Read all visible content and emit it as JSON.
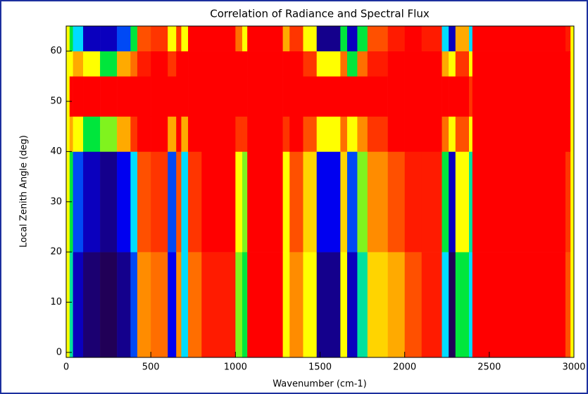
{
  "chart_data": {
    "type": "heatmap",
    "title": "Correlation of Radiance and Spectral Flux",
    "x_label": "Wavenumber (cm-1)",
    "y_label": "Local Zenith Angle (deg)",
    "xlim": [
      0,
      3000
    ],
    "ylim": [
      -1,
      65
    ],
    "xticks": [
      0,
      500,
      1000,
      1500,
      2000,
      2500,
      3000
    ],
    "yticks": [
      0,
      10,
      20,
      30,
      40,
      50,
      60
    ],
    "x_bins": [
      0,
      20,
      40,
      100,
      200,
      300,
      380,
      420,
      500,
      600,
      650,
      680,
      720,
      800,
      1000,
      1040,
      1070,
      1280,
      1320,
      1400,
      1480,
      1620,
      1660,
      1720,
      1780,
      1900,
      2000,
      2100,
      2220,
      2260,
      2300,
      2380,
      2400,
      2950,
      2980,
      3000
    ],
    "y_bins": [
      -1,
      20,
      40,
      47,
      55,
      60,
      65
    ],
    "values": [
      [
        0.6,
        0.6,
        0.6,
        0.6,
        0.6,
        0.6
      ],
      [
        0.45,
        0.5,
        0.7,
        1,
        0.6,
        0.5
      ],
      [
        0.2,
        0.3,
        0.6,
        1,
        0.7,
        0.4
      ],
      [
        0.1,
        0.2,
        0.5,
        1,
        0.6,
        0.2
      ],
      [
        0.05,
        0.15,
        0.55,
        1,
        0.5,
        0.2
      ],
      [
        0.15,
        0.25,
        0.7,
        1,
        0.7,
        0.3
      ],
      [
        0.3,
        0.4,
        0.9,
        1,
        0.8,
        0.5
      ],
      [
        0.75,
        0.85,
        1,
        1,
        0.95,
        0.85
      ],
      [
        0.8,
        0.9,
        1,
        1,
        1,
        0.9
      ],
      [
        0.25,
        0.3,
        0.7,
        1,
        0.9,
        0.6
      ],
      [
        0.75,
        0.85,
        1,
        1,
        1,
        0.9
      ],
      [
        0.4,
        0.4,
        0.7,
        1,
        1,
        0.6
      ],
      [
        0.8,
        0.9,
        1,
        1,
        1,
        1
      ],
      [
        0.95,
        1,
        1,
        1,
        1,
        1
      ],
      [
        0.55,
        0.6,
        0.9,
        1,
        1,
        0.8
      ],
      [
        0.5,
        0.55,
        0.9,
        1,
        1,
        0.6
      ],
      [
        1,
        1,
        1,
        1,
        1,
        1
      ],
      [
        0.6,
        0.6,
        0.9,
        1,
        1,
        0.7
      ],
      [
        0.75,
        0.85,
        1,
        1,
        1,
        0.9
      ],
      [
        0.6,
        0.65,
        0.85,
        1,
        0.9,
        0.6
      ],
      [
        0.15,
        0.25,
        0.6,
        1,
        0.6,
        0.15
      ],
      [
        0.6,
        0.65,
        0.8,
        1,
        0.8,
        0.5
      ],
      [
        0.2,
        0.3,
        0.6,
        1,
        0.5,
        0.2
      ],
      [
        0.45,
        0.55,
        0.75,
        1,
        0.8,
        0.5
      ],
      [
        0.65,
        0.75,
        0.9,
        1,
        0.95,
        0.85
      ],
      [
        0.7,
        0.85,
        1,
        1,
        1,
        0.95
      ],
      [
        0.85,
        0.95,
        1,
        1,
        1,
        1
      ],
      [
        0.95,
        0.95,
        1,
        1,
        1,
        0.95
      ],
      [
        0.4,
        0.5,
        0.8,
        1,
        0.7,
        0.4
      ],
      [
        0.05,
        0.2,
        0.6,
        1,
        0.6,
        0.2
      ],
      [
        0.5,
        0.6,
        0.85,
        1,
        0.9,
        0.7
      ],
      [
        0.4,
        0.45,
        0.6,
        0.9,
        0.6,
        0.4
      ],
      [
        1,
        1,
        1,
        1,
        1,
        1
      ],
      [
        0.85,
        0.9,
        1,
        1,
        1,
        0.95
      ],
      [
        0.6,
        0.6,
        0.6,
        0.6,
        0.6,
        0.6
      ]
    ]
  }
}
